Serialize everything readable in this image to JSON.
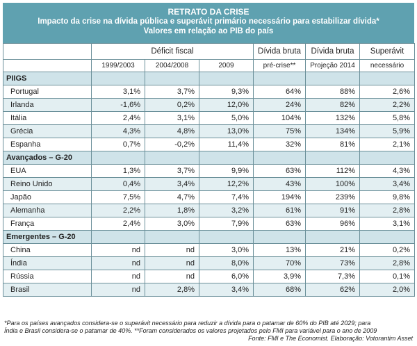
{
  "header": {
    "title": "RETRATO DA CRISE",
    "subtitle1": "Impacto da crise na dívida pública e superávit primário necessário para estabilizar dívida*",
    "subtitle2": "Valores em relação ao PIB do país"
  },
  "columns": {
    "deficit": "Déficit fiscal",
    "divida_bruta_1": "Dívida bruta",
    "divida_bruta_2": "Dívida bruta",
    "superavit": "Superávit",
    "sub": [
      "1999/2003",
      "2004/2008",
      "2009",
      "pré-crise**",
      "Projeção 2014",
      "necessário"
    ]
  },
  "groups": [
    {
      "name": "PIIGS",
      "rows": [
        {
          "country": "Portugal",
          "vals": [
            "3,1%",
            "3,7%",
            "9,3%",
            "64%",
            "88%",
            "2,6%"
          ]
        },
        {
          "country": "Irlanda",
          "vals": [
            "-1,6%",
            "0,2%",
            "12,0%",
            "24%",
            "82%",
            "2,2%"
          ]
        },
        {
          "country": "Itália",
          "vals": [
            "2,4%",
            "3,1%",
            "5,0%",
            "104%",
            "132%",
            "5,8%"
          ]
        },
        {
          "country": "Grécia",
          "vals": [
            "4,3%",
            "4,8%",
            "13,0%",
            "75%",
            "134%",
            "5,9%"
          ]
        },
        {
          "country": "Espanha",
          "vals": [
            "0,7%",
            "-0,2%",
            "11,4%",
            "32%",
            "81%",
            "2,1%"
          ]
        }
      ]
    },
    {
      "name": "Avançados – G-20",
      "rows": [
        {
          "country": "EUA",
          "vals": [
            "1,3%",
            "3,7%",
            "9,9%",
            "63%",
            "112%",
            "4,3%"
          ]
        },
        {
          "country": "Reino Unido",
          "vals": [
            "0,4%",
            "3,4%",
            "12,2%",
            "43%",
            "100%",
            "3,4%"
          ]
        },
        {
          "country": "Japão",
          "vals": [
            "7,5%",
            "4,7%",
            "7,4%",
            "194%",
            "239%",
            "9,8%"
          ]
        },
        {
          "country": "Alemanha",
          "vals": [
            "2,2%",
            "1,8%",
            "3,2%",
            "61%",
            "91%",
            "2,8%"
          ]
        },
        {
          "country": "França",
          "vals": [
            "2,4%",
            "3,0%",
            "7,9%",
            "63%",
            "96%",
            "3,1%"
          ]
        }
      ]
    },
    {
      "name": "Emergentes – G-20",
      "rows": [
        {
          "country": "China",
          "vals": [
            "nd",
            "nd",
            "3,0%",
            "13%",
            "21%",
            "0,2%"
          ]
        },
        {
          "country": "Índia",
          "vals": [
            "nd",
            "nd",
            "8,0%",
            "70%",
            "73%",
            "2,8%"
          ]
        },
        {
          "country": "Rússia",
          "vals": [
            "nd",
            "nd",
            "6,0%",
            "3,9%",
            "7,3%",
            "0,1%"
          ]
        },
        {
          "country": "Brasil",
          "vals": [
            "nd",
            "2,8%",
            "3,4%",
            "68%",
            "62%",
            "2,0%"
          ]
        }
      ]
    }
  ],
  "footnote": {
    "line1": "*Para os países avançados considera-se o superávit necessário para reduzir a dívida para o patamar de 60% do PIB até 2029; para",
    "line2": "Índia e Brasil considera-se o patamar de 40%.  **Foram considerados os valores projetados pelo FMI para variável para o ano de 2009",
    "source": "Fonte: FMI e The Economist. Elaboração: Votorantim Asset"
  }
}
